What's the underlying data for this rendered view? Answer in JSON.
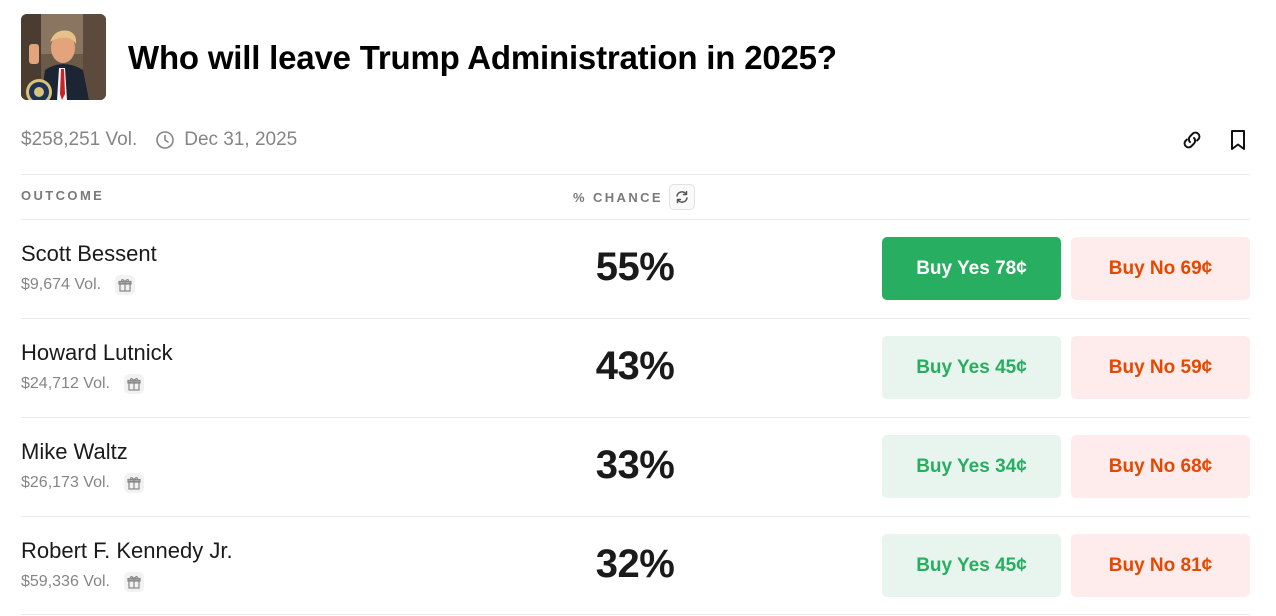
{
  "market": {
    "title": "Who will leave Trump Administration in 2025?",
    "volume": "$258,251 Vol.",
    "end_date": "Dec 31, 2025"
  },
  "table": {
    "outcome_header": "OUTCOME",
    "chance_header": "% CHANCE"
  },
  "outcomes": [
    {
      "name": "Scott Bessent",
      "volume": "$9,674 Vol.",
      "chance": "55%",
      "yes_label": "Buy Yes 78¢",
      "no_label": "Buy No 69¢",
      "yes_active": true
    },
    {
      "name": "Howard Lutnick",
      "volume": "$24,712 Vol.",
      "chance": "43%",
      "yes_label": "Buy Yes 45¢",
      "no_label": "Buy No 59¢",
      "yes_active": false
    },
    {
      "name": "Mike Waltz",
      "volume": "$26,173 Vol.",
      "chance": "33%",
      "yes_label": "Buy Yes 34¢",
      "no_label": "Buy No 68¢",
      "yes_active": false
    },
    {
      "name": "Robert F. Kennedy Jr.",
      "volume": "$59,336 Vol.",
      "chance": "32%",
      "yes_label": "Buy Yes 45¢",
      "no_label": "Buy No 81¢",
      "yes_active": false
    }
  ],
  "icons": {
    "clock": "clock-icon",
    "link": "link-icon",
    "bookmark": "bookmark-icon",
    "refresh": "refresh-icon",
    "gift": "gift-icon"
  },
  "colors": {
    "yes": "#27ae60",
    "yes_bg": "#e8f5ee",
    "no": "#e64800",
    "no_bg": "#fdeceb",
    "muted": "#858585"
  }
}
